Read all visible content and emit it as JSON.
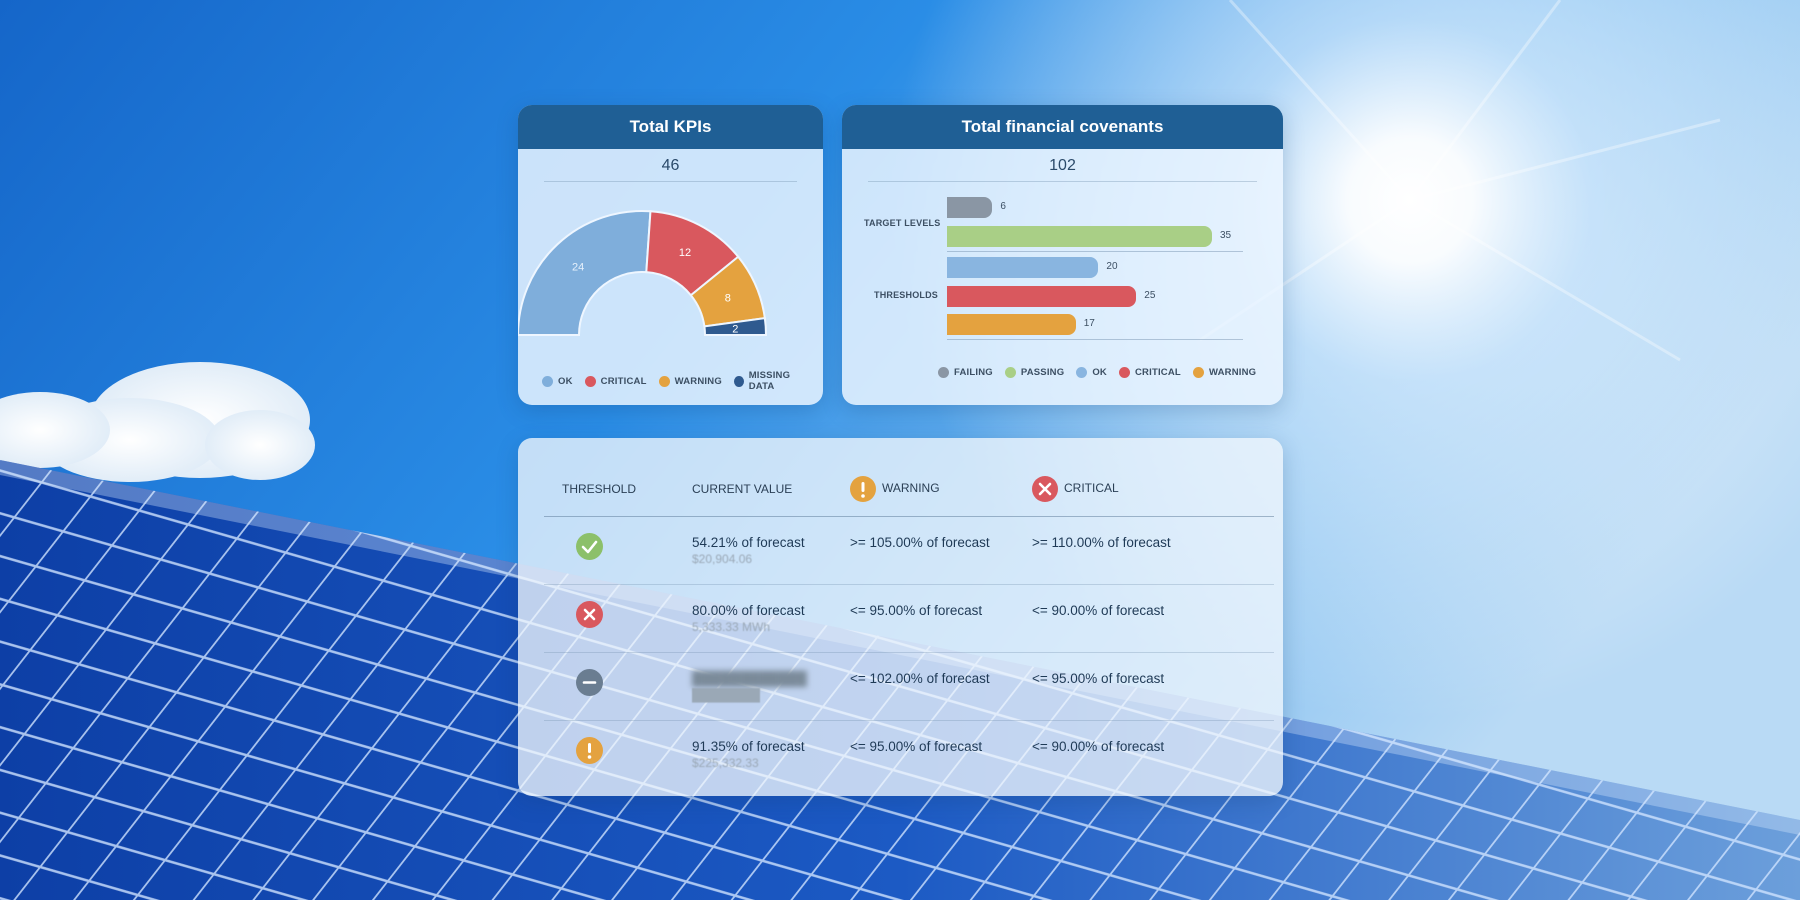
{
  "kpis": {
    "title": "Total KPIs",
    "total": "46",
    "legend": [
      {
        "label": "OK",
        "color": "#7faedb"
      },
      {
        "label": "CRITICAL",
        "color": "#d9585e"
      },
      {
        "label": "WARNING",
        "color": "#e4a23f"
      },
      {
        "label": "MISSING DATA",
        "color": "#2f5a8f"
      }
    ]
  },
  "covenants": {
    "title": "Total financial covenants",
    "total": "102",
    "group_labels": [
      "TARGET LEVELS",
      "THRESHOLDS"
    ],
    "legend": [
      {
        "label": "FAILING",
        "color": "#8a96a4"
      },
      {
        "label": "PASSING",
        "color": "#a9cf86"
      },
      {
        "label": "OK",
        "color": "#89b5e0"
      },
      {
        "label": "CRITICAL",
        "color": "#d9585e"
      },
      {
        "label": "WARNING",
        "color": "#e4a23f"
      }
    ]
  },
  "chart_data": [
    {
      "type": "pie",
      "title": "Total KPIs",
      "categories": [
        "OK",
        "CRITICAL",
        "WARNING",
        "MISSING DATA"
      ],
      "values": [
        24,
        12,
        8,
        2
      ],
      "colors": [
        "#7faedb",
        "#d9585e",
        "#e4a23f",
        "#2f5a8f"
      ]
    },
    {
      "type": "bar",
      "title": "Total financial covenants",
      "groups": [
        {
          "name": "TARGET LEVELS",
          "bars": [
            {
              "category": "FAILING",
              "value": 6
            },
            {
              "category": "PASSING",
              "value": 35
            }
          ]
        },
        {
          "name": "THRESHOLDS",
          "bars": [
            {
              "category": "OK",
              "value": 20
            },
            {
              "category": "CRITICAL",
              "value": 25
            },
            {
              "category": "WARNING",
              "value": 17
            }
          ]
        }
      ],
      "xlim": [
        0,
        40
      ],
      "colors": {
        "FAILING": "#8a96a4",
        "PASSING": "#a9cf86",
        "OK": "#89b5e0",
        "CRITICAL": "#d9585e",
        "WARNING": "#e4a23f"
      }
    }
  ],
  "thresholds_table": {
    "headers": [
      "THRESHOLD",
      "CURRENT VALUE",
      "WARNING",
      "CRITICAL"
    ],
    "header_icons": {
      "warning": "warning-icon",
      "critical": "critical-x-icon"
    },
    "rows": [
      {
        "status": "check-icon",
        "status_color": "#8cc06a",
        "primary": "54.21% of forecast",
        "secondary": "$20,904.06",
        "warning": ">= 105.00% of forecast",
        "critical": ">= 110.00% of forecast"
      },
      {
        "status": "x-icon",
        "status_color": "#d9585e",
        "primary": "80.00% of forecast",
        "secondary": "5,333.33 MWh",
        "warning": "<= 95.00% of forecast",
        "critical": "<= 90.00% of forecast"
      },
      {
        "status": "minus-icon",
        "status_color": "#6a7d91",
        "primary": "",
        "secondary": "",
        "warning": "<= 102.00% of forecast",
        "critical": "<= 95.00% of forecast"
      },
      {
        "status": "exclamation-icon",
        "status_color": "#e4a23f",
        "primary": "91.35% of forecast",
        "secondary": "$225,332.33",
        "warning": "<= 95.00% of forecast",
        "critical": "<= 90.00% of forecast"
      }
    ]
  }
}
